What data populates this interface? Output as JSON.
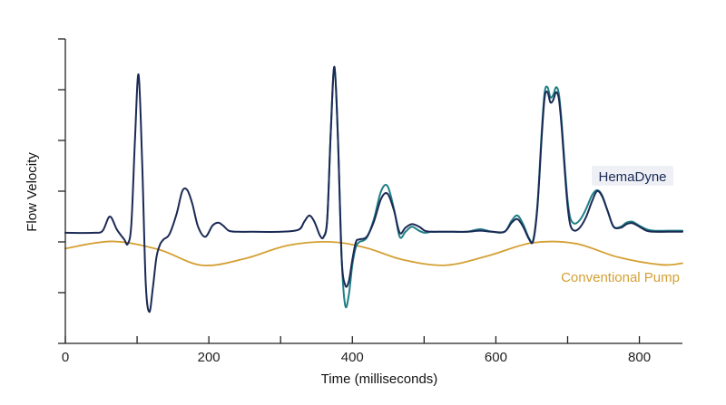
{
  "chart_data": {
    "type": "line",
    "title": "",
    "xlabel": "Time (milliseconds)",
    "ylabel": "Flow Velocity",
    "xlim": [
      0,
      860
    ],
    "ylim": [
      -2,
      4
    ],
    "x_ticks": [
      0,
      100,
      200,
      300,
      400,
      500,
      600,
      700,
      800
    ],
    "x_tick_labels": [
      "0",
      "",
      "200",
      "",
      "400",
      "",
      "600",
      "",
      "800"
    ],
    "y_ticks": [
      -2,
      -1,
      0,
      1,
      2,
      3,
      4
    ],
    "grid": false,
    "legend": "inline labels at right",
    "series": [
      {
        "name": "HemaDyne",
        "color": "#1b2a55",
        "x": [
          0,
          40,
          52,
          62,
          72,
          82,
          87,
          92,
          97,
          102,
          107,
          112,
          117,
          122,
          127,
          132,
          137,
          145,
          155,
          163,
          170,
          177,
          185,
          195,
          205,
          213,
          220,
          228,
          240,
          260,
          300,
          325,
          333,
          340,
          347,
          355,
          360,
          365,
          370,
          375,
          380,
          385,
          390,
          395,
          400,
          405,
          410,
          420,
          430,
          440,
          449,
          458,
          466,
          474,
          483,
          493,
          501,
          510,
          520,
          540,
          560,
          578,
          595,
          612,
          622,
          630,
          638,
          646,
          652,
          658,
          664,
          668,
          672,
          676,
          680,
          684,
          688,
          692,
          696,
          700,
          704,
          710,
          718,
          726,
          734,
          741,
          748,
          756,
          764,
          774,
          782,
          790,
          800,
          810,
          820,
          840,
          860
        ],
        "y": [
          0.18,
          0.18,
          0.22,
          0.5,
          0.24,
          0.05,
          -0.04,
          0.35,
          2.0,
          3.3,
          1.6,
          -0.8,
          -1.38,
          -0.9,
          -0.3,
          -0.05,
          0.05,
          0.15,
          0.55,
          1.0,
          1.02,
          0.75,
          0.3,
          0.1,
          0.32,
          0.38,
          0.32,
          0.22,
          0.2,
          0.2,
          0.2,
          0.24,
          0.4,
          0.52,
          0.4,
          0.12,
          0.1,
          0.45,
          2.2,
          3.45,
          2.0,
          -0.3,
          -0.85,
          -0.78,
          -0.35,
          0.0,
          0.05,
          0.1,
          0.4,
          0.85,
          0.95,
          0.62,
          0.18,
          0.28,
          0.35,
          0.3,
          0.22,
          0.2,
          0.2,
          0.2,
          0.2,
          0.22,
          0.2,
          0.2,
          0.38,
          0.45,
          0.3,
          0.06,
          0.02,
          0.7,
          2.1,
          2.85,
          2.95,
          2.75,
          2.8,
          2.95,
          2.8,
          2.2,
          1.4,
          0.7,
          0.32,
          0.22,
          0.3,
          0.5,
          0.8,
          1.0,
          0.9,
          0.6,
          0.3,
          0.28,
          0.35,
          0.37,
          0.3,
          0.22,
          0.2,
          0.2,
          0.2
        ]
      },
      {
        "name": "",
        "color": "#1f7f86",
        "x": [
          360,
          365,
          370,
          375,
          380,
          385,
          390,
          395,
          400,
          405,
          410,
          420,
          430,
          440,
          449,
          458,
          466,
          474,
          483,
          493,
          501,
          510,
          520,
          540,
          560,
          578,
          595,
          612,
          622,
          630,
          638,
          646,
          652,
          658,
          664,
          668,
          672,
          676,
          680,
          684,
          688,
          692,
          696,
          700,
          704,
          710,
          718,
          726,
          734,
          741,
          748,
          756,
          764,
          774,
          782,
          790,
          800,
          810,
          820,
          840,
          860
        ],
        "y": [
          0.1,
          0.45,
          2.2,
          3.45,
          2.0,
          -0.3,
          -1.25,
          -1.05,
          -0.45,
          -0.1,
          0.0,
          0.08,
          0.45,
          1.0,
          1.1,
          0.65,
          0.1,
          0.2,
          0.3,
          0.22,
          0.18,
          0.2,
          0.2,
          0.2,
          0.2,
          0.25,
          0.2,
          0.2,
          0.42,
          0.52,
          0.35,
          0.08,
          0.04,
          0.75,
          2.2,
          2.95,
          3.05,
          2.85,
          2.9,
          3.05,
          2.9,
          2.3,
          1.5,
          0.82,
          0.46,
          0.36,
          0.45,
          0.66,
          0.92,
          1.02,
          0.92,
          0.6,
          0.3,
          0.3,
          0.38,
          0.4,
          0.32,
          0.25,
          0.22,
          0.22,
          0.22
        ]
      },
      {
        "name": "Conventional Pump",
        "color": "#d4a034",
        "curve": "sinusoid",
        "x": [
          0,
          65,
          130,
          190,
          250,
          310,
          370,
          420,
          470,
          530,
          590,
          650,
          710,
          770,
          830,
          860
        ],
        "y": [
          -0.13,
          0.01,
          -0.15,
          -0.46,
          -0.33,
          -0.07,
          0.0,
          -0.12,
          -0.35,
          -0.46,
          -0.27,
          -0.02,
          -0.03,
          -0.3,
          -0.45,
          -0.42
        ]
      }
    ],
    "annotations": [
      {
        "text": "HemaDyne",
        "series": "HemaDyne"
      },
      {
        "text": "Conventional Pump",
        "series": "Conventional Pump"
      }
    ]
  }
}
